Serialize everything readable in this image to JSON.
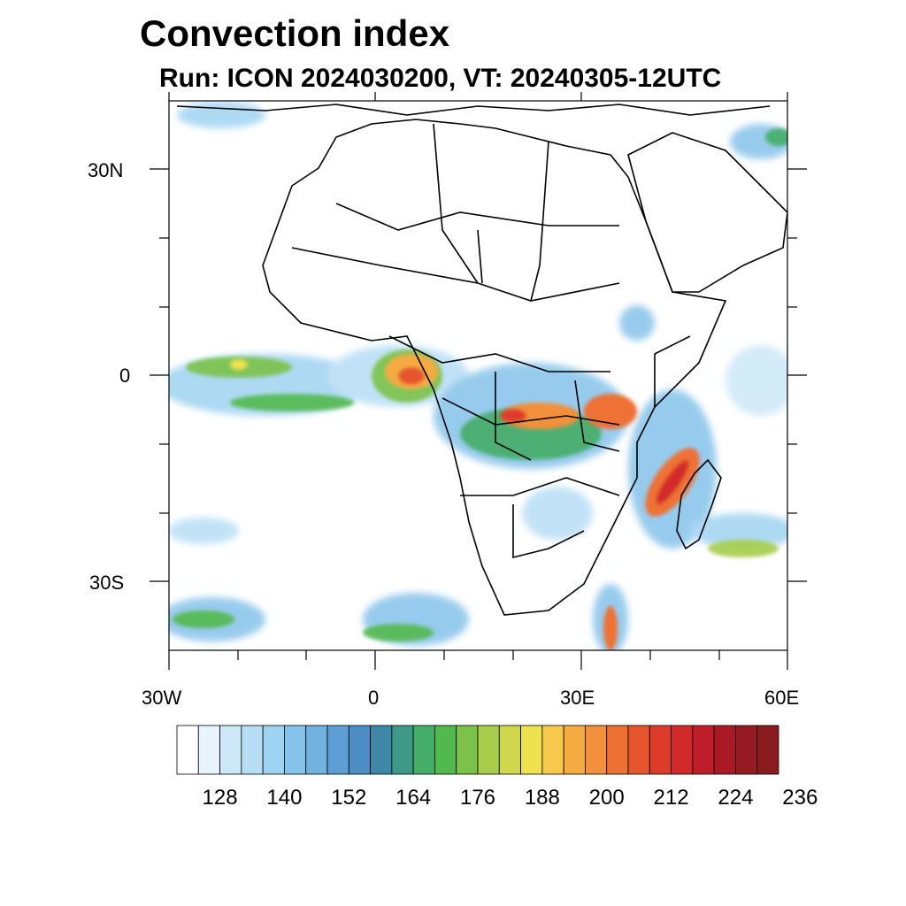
{
  "title": "Convection index",
  "subtitle": "Run: ICON 2024030200,  VT: 20240305-12UTC",
  "lat_labels": [
    "30N",
    "0",
    "30S"
  ],
  "lon_labels": [
    "30W",
    "0",
    "30E",
    "60E"
  ],
  "colorbar": {
    "colors": [
      "#ffffff",
      "#e8f4fb",
      "#cde8f7",
      "#b7def5",
      "#9fd3f2",
      "#86c3ea",
      "#72b2e1",
      "#5d9fd4",
      "#4b8dc4",
      "#3f87a6",
      "#3e9a86",
      "#44ad68",
      "#52b94e",
      "#7cc24a",
      "#a7cd4b",
      "#cfd84c",
      "#efe24f",
      "#f7c94c",
      "#f5ab42",
      "#f2903b",
      "#ee7134",
      "#e5552e",
      "#dd3c2b",
      "#d22a2b",
      "#c01d2a",
      "#aa1a26",
      "#961a22",
      "#8a1a1e"
    ],
    "tick_labels": [
      "128",
      "140",
      "152",
      "164",
      "176",
      "188",
      "200",
      "212",
      "224",
      "236"
    ]
  }
}
